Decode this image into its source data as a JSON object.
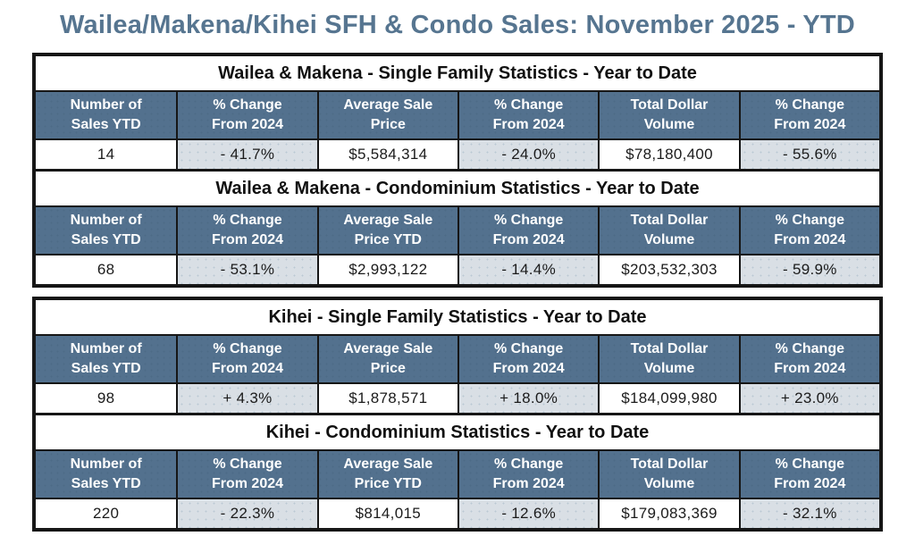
{
  "page_title": "Wailea/Makena/Kihei SFH & Condo Sales: November 2025 - YTD",
  "colors": {
    "title_text": "#567590",
    "header_bg": "#53718e",
    "header_text": "#ffffff",
    "shaded_cell_bg": "#d9dfe5",
    "border": "#161616"
  },
  "chart_data": [
    {
      "type": "table",
      "title": "Wailea & Makena - Single Family Statistics - Year to Date",
      "headers": [
        "Number of\nSales YTD",
        "% Change\nFrom 2024",
        "Average Sale\nPrice",
        "% Change\nFrom 2024",
        "Total Dollar\nVolume",
        "% Change\nFrom 2024"
      ],
      "rows": [
        [
          "14",
          "- 41.7%",
          "$5,584,314",
          "- 24.0%",
          "$78,180,400",
          "- 55.6%"
        ]
      ]
    },
    {
      "type": "table",
      "title": "Wailea & Makena - Condominium Statistics - Year to Date",
      "headers": [
        "Number of\nSales YTD",
        "% Change\nFrom 2024",
        "Average Sale\nPrice YTD",
        "% Change\nFrom 2024",
        "Total Dollar\nVolume",
        "% Change\nFrom 2024"
      ],
      "rows": [
        [
          "68",
          "- 53.1%",
          "$2,993,122",
          "- 14.4%",
          "$203,532,303",
          "- 59.9%"
        ]
      ]
    },
    {
      "type": "table",
      "title": "Kihei - Single Family Statistics - Year to Date",
      "headers": [
        "Number of\nSales YTD",
        "% Change\nFrom 2024",
        "Average Sale\nPrice",
        "% Change\nFrom 2024",
        "Total Dollar\nVolume",
        "% Change\nFrom 2024"
      ],
      "rows": [
        [
          "98",
          "+ 4.3%",
          "$1,878,571",
          "+ 18.0%",
          "$184,099,980",
          "+ 23.0%"
        ]
      ]
    },
    {
      "type": "table",
      "title": "Kihei - Condominium Statistics - Year to Date",
      "headers": [
        "Number of\nSales YTD",
        "% Change\nFrom 2024",
        "Average Sale\nPrice YTD",
        "% Change\nFrom 2024",
        "Total Dollar\nVolume",
        "% Change\nFrom 2024"
      ],
      "rows": [
        [
          "220",
          "- 22.3%",
          "$814,015",
          "- 12.6%",
          "$179,083,369",
          "- 32.1%"
        ]
      ]
    }
  ]
}
